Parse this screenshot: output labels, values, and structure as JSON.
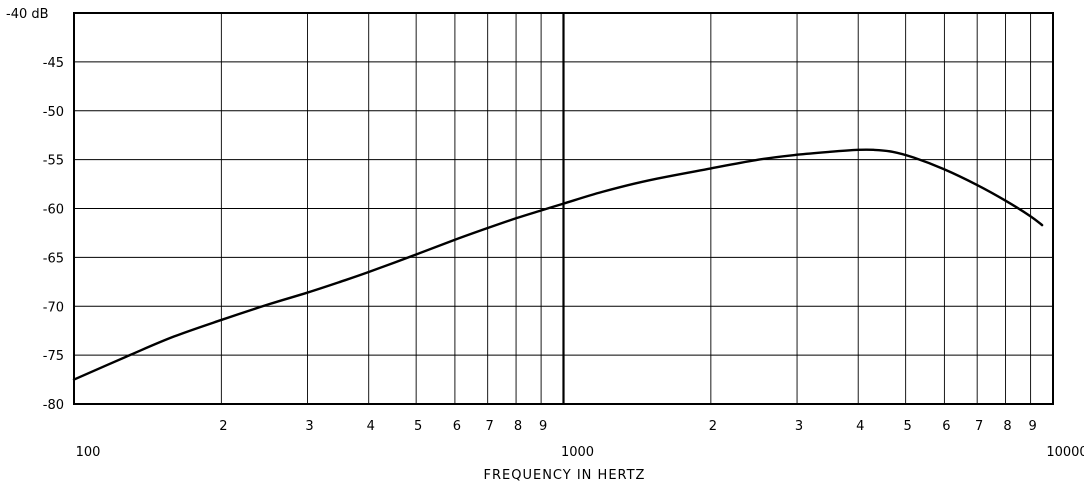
{
  "chart_data": {
    "type": "line",
    "title": "",
    "xlabel": "FREQUENCY IN HERTZ",
    "ylabel": "",
    "x_scale": "log",
    "xlim": [
      100,
      10000
    ],
    "ylim": [
      -80,
      -40
    ],
    "grid": true,
    "x_tick_labels": [
      {
        "value": 100,
        "label": "100"
      },
      {
        "value": 200,
        "label": "2"
      },
      {
        "value": 300,
        "label": "3"
      },
      {
        "value": 400,
        "label": "4"
      },
      {
        "value": 500,
        "label": "5"
      },
      {
        "value": 600,
        "label": "6"
      },
      {
        "value": 700,
        "label": "7"
      },
      {
        "value": 800,
        "label": "8"
      },
      {
        "value": 900,
        "label": "9"
      },
      {
        "value": 1000,
        "label": "1000"
      },
      {
        "value": 2000,
        "label": "2"
      },
      {
        "value": 3000,
        "label": "3"
      },
      {
        "value": 4000,
        "label": "4"
      },
      {
        "value": 5000,
        "label": "5"
      },
      {
        "value": 6000,
        "label": "6"
      },
      {
        "value": 7000,
        "label": "7"
      },
      {
        "value": 8000,
        "label": "8"
      },
      {
        "value": 9000,
        "label": "9"
      },
      {
        "value": 10000,
        "label": "10000"
      }
    ],
    "y_tick_labels": [
      {
        "value": -40,
        "label": "-40 dB"
      },
      {
        "value": -45,
        "label": "-45"
      },
      {
        "value": -50,
        "label": "-50"
      },
      {
        "value": -55,
        "label": "-55"
      },
      {
        "value": -60,
        "label": "-60"
      },
      {
        "value": -65,
        "label": "-65"
      },
      {
        "value": -70,
        "label": "-70"
      },
      {
        "value": -75,
        "label": "-75"
      },
      {
        "value": -80,
        "label": "-80"
      }
    ],
    "series": [
      {
        "color": "#000000",
        "x": [
          100,
          130,
          160,
          200,
          250,
          300,
          350,
          400,
          500,
          600,
          700,
          800,
          900,
          1000,
          1200,
          1500,
          2000,
          2500,
          3000,
          3500,
          4000,
          4300,
          4700,
          5200,
          6000,
          7000,
          8000,
          9000,
          9500
        ],
        "y": [
          -77.5,
          -75.0,
          -73.1,
          -71.4,
          -69.8,
          -68.6,
          -67.5,
          -66.5,
          -64.7,
          -63.2,
          -62.0,
          -61.0,
          -60.2,
          -59.5,
          -58.3,
          -57.1,
          -55.9,
          -55.0,
          -54.5,
          -54.2,
          -54.0,
          -54.0,
          -54.2,
          -54.8,
          -56.0,
          -57.6,
          -59.2,
          -60.8,
          -61.7
        ]
      }
    ]
  }
}
